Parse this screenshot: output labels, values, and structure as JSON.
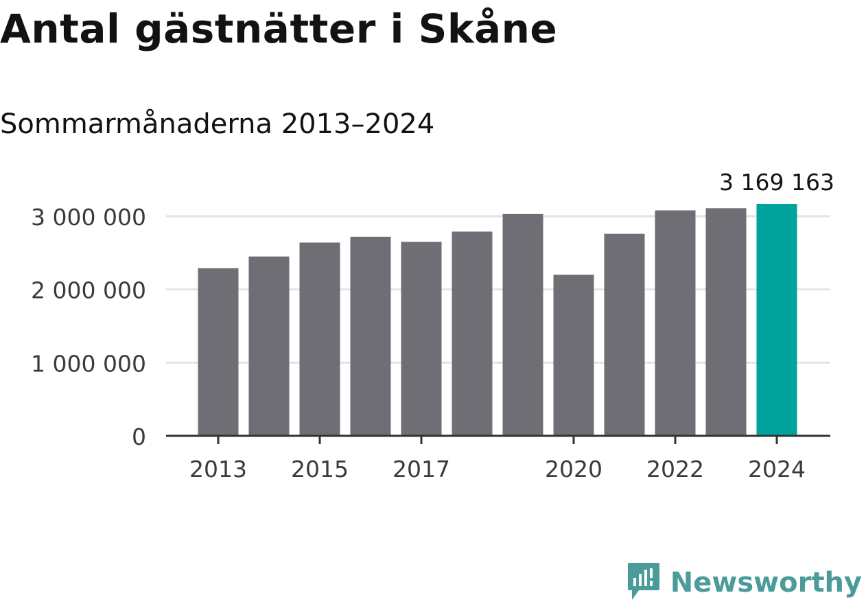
{
  "title": "Antal gästnätter i Skåne",
  "subtitle": "Sommarmånaderna 2013–2024",
  "brand": {
    "name": "Newsworthy",
    "icon": "newsworthy-logo-icon"
  },
  "colors": {
    "bar": "#6f6e74",
    "highlight": "#00a39b",
    "grid": "#e3e3e3",
    "axis": "#333333",
    "brand": "#4a9b9a"
  },
  "chart_data": {
    "type": "bar",
    "categories": [
      "2013",
      "2014",
      "2015",
      "2016",
      "2017",
      "2018",
      "2019",
      "2020",
      "2021",
      "2022",
      "2023",
      "2024"
    ],
    "values": [
      2290000,
      2450000,
      2640000,
      2720000,
      2650000,
      2790000,
      3030000,
      2200000,
      2760000,
      3080000,
      3110000,
      3169163
    ],
    "x_tick_labels": [
      "2013",
      "2015",
      "2017",
      "2020",
      "2022",
      "2024"
    ],
    "y_ticks": [
      0,
      1000000,
      2000000,
      3000000
    ],
    "y_tick_labels": [
      "0",
      "1 000 000",
      "2 000 000",
      "3 000 000"
    ],
    "ylim": [
      0,
      3169163
    ],
    "highlight_category": "2024",
    "data_labels": [
      {
        "category": "2024",
        "text": "3 169 163"
      }
    ],
    "grid": true,
    "xlabel": "",
    "ylabel": ""
  }
}
